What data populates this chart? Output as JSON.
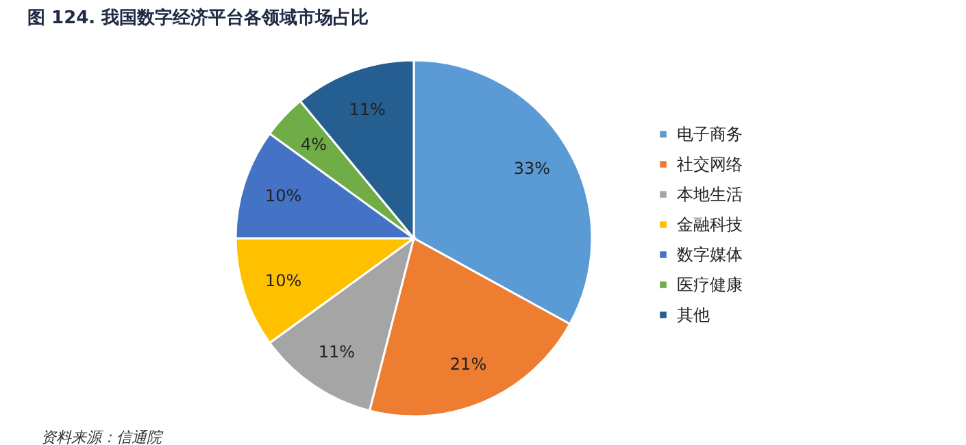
{
  "chart_data": {
    "type": "pie",
    "title": "图 124. 我国数字经济平台各领域市场占比",
    "categories": [
      "电子商务",
      "社交网络",
      "本地生活",
      "金融科技",
      "数字媒体",
      "医疗健康",
      "其他"
    ],
    "values": [
      33,
      21,
      11,
      10,
      10,
      4,
      11
    ],
    "value_labels": [
      "33%",
      "21%",
      "11%",
      "10%",
      "10%",
      "4%",
      "11%"
    ],
    "colors": [
      "#5b9bd5",
      "#ed7d31",
      "#a5a5a5",
      "#ffc000",
      "#4472c4",
      "#70ad47",
      "#255e91"
    ],
    "legend": "right",
    "annotations": [
      "资料来源：信通院"
    ]
  }
}
